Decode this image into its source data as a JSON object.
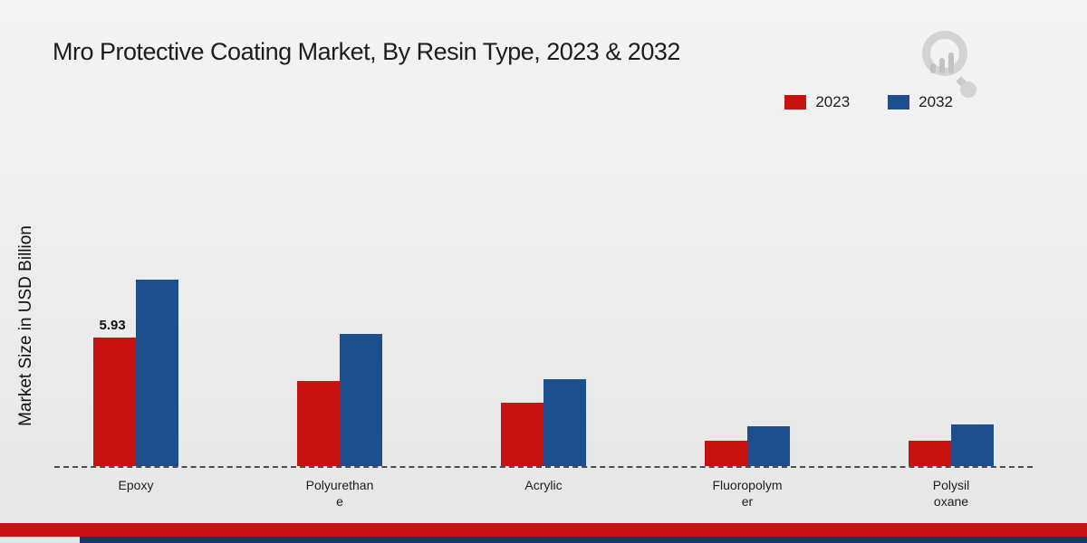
{
  "title": "Mro Protective Coating Market, By Resin Type, 2023 & 2032",
  "ylabel": "Market Size in USD Billion",
  "legend": [
    {
      "label": "2023",
      "color": "#c8120f"
    },
    {
      "label": "2032",
      "color": "#1d4f8c"
    }
  ],
  "brand": {
    "accent_red": "#c8120f",
    "accent_navy": "#1b3a5e",
    "logo_gray": "#d0d0d0"
  },
  "chart_data": {
    "type": "bar",
    "title": "Mro Protective Coating Market, By Resin Type, 2023 & 2032",
    "xlabel": "",
    "ylabel": "Market Size in USD Billion",
    "categories": [
      "Epoxy",
      "Polyurethane",
      "Acrylic",
      "Fluoropolymer",
      "Polysiloxane"
    ],
    "category_label_lines": [
      "Epoxy",
      "Polyurethan\ne",
      "Acrylic",
      "Fluoropolym\ner",
      "Polysil\noxane"
    ],
    "series": [
      {
        "name": "2023",
        "color": "#c8120f",
        "values": [
          5.93,
          3.9,
          2.9,
          1.15,
          1.15
        ]
      },
      {
        "name": "2032",
        "color": "#1d4f8c",
        "values": [
          8.6,
          6.1,
          4.0,
          1.85,
          1.9
        ]
      }
    ],
    "data_labels": [
      {
        "series": "2023",
        "category": "Epoxy",
        "text": "5.93"
      }
    ],
    "ylim": [
      0,
      10
    ],
    "grid": false,
    "axis_line": "dashed",
    "legend_position": "top-right"
  }
}
